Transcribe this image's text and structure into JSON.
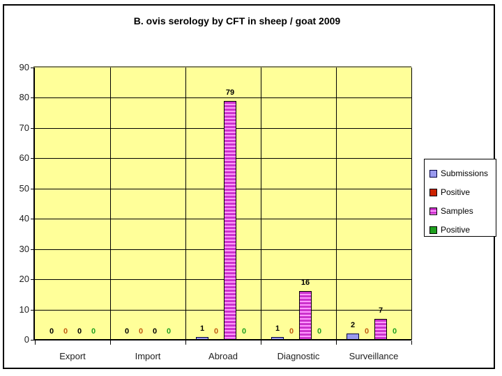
{
  "chart_data": {
    "type": "bar",
    "title": "B. ovis serology by CFT in sheep / goat 2009",
    "categories": [
      "Export",
      "Import",
      "Abroad",
      "Diagnostic",
      "Surveillance"
    ],
    "series": [
      {
        "name": "Submissions",
        "values": [
          0,
          0,
          1,
          1,
          2
        ],
        "color": "#9999EE",
        "border_color": "#000040",
        "label_color": "#000000",
        "pattern": "solid"
      },
      {
        "name": "Positive",
        "values": [
          0,
          0,
          0,
          0,
          0
        ],
        "color": "#CC2200",
        "border_color": "#000000",
        "label_color": "#C05A11",
        "pattern": "solid"
      },
      {
        "name": "Samples",
        "values": [
          0,
          0,
          79,
          16,
          7
        ],
        "color": "#CC33CC",
        "stripe_color": "#FF99FF",
        "border_color": "#000000",
        "label_color": "#000000",
        "pattern": "hstripes"
      },
      {
        "name": "Positive",
        "values": [
          0,
          0,
          0,
          0,
          0
        ],
        "color": "#1FA01F",
        "border_color": "#000000",
        "label_color": "#1FA01F",
        "pattern": "solid"
      }
    ],
    "xlabel": "",
    "ylabel": "",
    "ylim": [
      0,
      90
    ],
    "yticks": [
      0,
      10,
      20,
      30,
      40,
      50,
      60,
      70,
      80,
      90
    ],
    "grid": true,
    "data_labels": true,
    "legend_position": "right",
    "plot_bg_color": "#FFFF99",
    "gridline_color": "#000000",
    "plot_top_border_color": "#808060"
  },
  "legend": {
    "items": [
      "Submissions",
      "Positive",
      "Samples",
      "Positive"
    ]
  }
}
